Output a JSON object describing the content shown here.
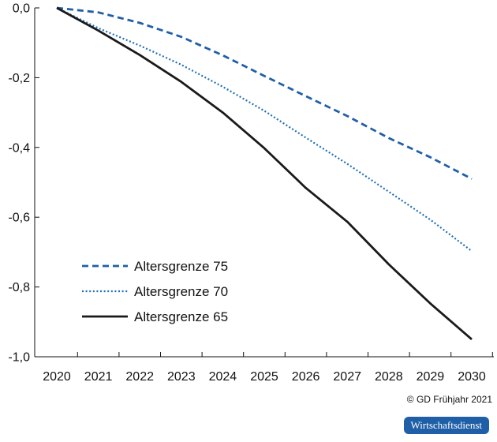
{
  "chart_data": {
    "type": "line",
    "title": "",
    "xlabel": "",
    "ylabel": "",
    "x": [
      2020,
      2021,
      2022,
      2023,
      2024,
      2025,
      2026,
      2027,
      2028,
      2029,
      2030
    ],
    "x_tick_labels": [
      "2020",
      "2021",
      "2022",
      "2023",
      "2024",
      "2025",
      "2026",
      "2027",
      "2028",
      "2029",
      "2030"
    ],
    "ylim": [
      -1.0,
      0.0
    ],
    "y_ticks": [
      0.0,
      -0.2,
      -0.4,
      -0.6,
      -0.8,
      -1.0
    ],
    "y_tick_labels": [
      "0,0",
      "-0,2",
      "-0,4",
      "-0,6",
      "-0,8",
      "-1,0"
    ],
    "grid": false,
    "legend_position": "lower-left",
    "series": [
      {
        "name": "Altersgrenze 75",
        "style": "dashed",
        "color": "#1f5fa7",
        "values": [
          0.0,
          -0.013,
          -0.043,
          -0.083,
          -0.136,
          -0.195,
          -0.253,
          -0.31,
          -0.373,
          -0.428,
          -0.49
        ]
      },
      {
        "name": "Altersgrenze 70",
        "style": "dotted",
        "color": "#1f6fb7",
        "values": [
          0.0,
          -0.058,
          -0.108,
          -0.163,
          -0.226,
          -0.295,
          -0.372,
          -0.447,
          -0.527,
          -0.607,
          -0.697
        ]
      },
      {
        "name": "Altersgrenze 65",
        "style": "solid",
        "color": "#1a1a1a",
        "values": [
          0.0,
          -0.065,
          -0.135,
          -0.212,
          -0.3,
          -0.402,
          -0.516,
          -0.613,
          -0.735,
          -0.847,
          -0.95
        ]
      }
    ]
  },
  "footer": {
    "copyright": "© GD Frühjahr 2021",
    "brand": "Wirtschaftsdienst"
  }
}
